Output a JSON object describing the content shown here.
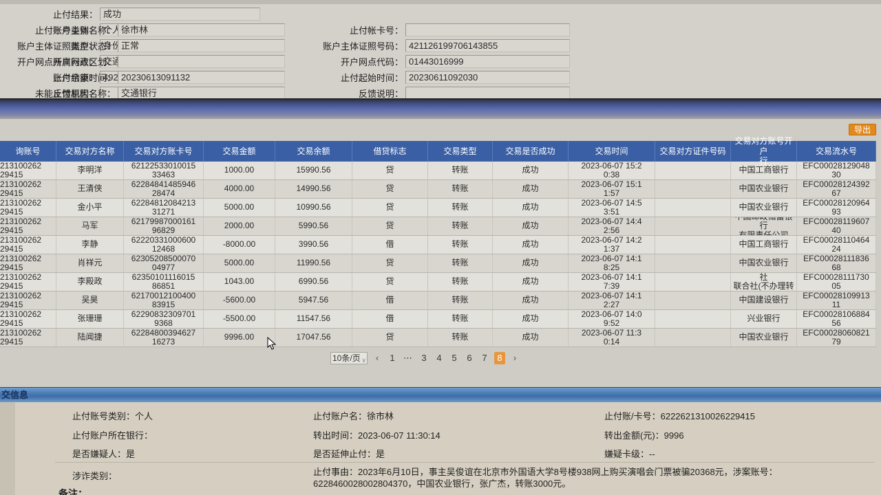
{
  "colors": {
    "accent_orange": "#e2891c",
    "header_blue": "#3a5fa5",
    "active_page_orange": "#e8963c",
    "band_blue": "#5d6baf"
  },
  "form": {
    "rows": [
      {
        "l1": "止付结果：",
        "v1": "成功",
        "l2": null,
        "v2": null,
        "l3": null,
        "v3": null
      },
      {
        "l1": "止付账号类别：",
        "v1": "个人",
        "l2": "止付帐卡号：",
        "v2": "",
        "l3": "账户主体名称：",
        "v3": "徐市林"
      },
      {
        "l1": "账户主体证照类型：",
        "v1": "身份证",
        "l2": "账户主体证照号码：",
        "v2": "421126199706143855",
        "l3": "账户状态：",
        "v3": "正常"
      },
      {
        "l1": "开户网点：",
        "v1": "交通银行深圳八卦岭支行",
        "l2": "开户网点代码：",
        "v2": "01443016999",
        "l3": "开户网点所属行政区划：",
        "v3": ""
      },
      {
        "l1": "账户余额：",
        "v1": "4920.56",
        "l2": "止付起始时间：",
        "v2": "20230611092030",
        "l3": "止付结束时间：",
        "v3": "20230613091132"
      },
      {
        "l1": "未能止付原因：",
        "v1": "",
        "l2": "反馈说明：",
        "v2": "",
        "l3": "反馈机构名称：",
        "v3": "交通银行"
      }
    ]
  },
  "toolbar": {
    "export_label": "导出"
  },
  "table": {
    "columns": [
      "询账号",
      "交易对方名称",
      "交易对方账卡号",
      "交易金额",
      "交易余额",
      "借贷标志",
      "交易类型",
      "交易是否成功",
      "交易时间",
      "交易对方证件号码",
      "交易对方账号开户\n行",
      "交易流水号"
    ],
    "rows": [
      [
        "213100262\n29415",
        "李明洋",
        "62122533010015\n33463",
        "1000.00",
        "15990.56",
        "贷",
        "转账",
        "成功",
        "2023-06-07 15:2\n0:38",
        "",
        "中国工商银行",
        "EFC00028129048\n30"
      ],
      [
        "213100262\n29415",
        "王清侠",
        "62284841485946\n28474",
        "4000.00",
        "14990.56",
        "贷",
        "转账",
        "成功",
        "2023-06-07 15:1\n1:57",
        "",
        "中国农业银行",
        "EFC00028124392\n67"
      ],
      [
        "213100262\n29415",
        "金小平",
        "62284812084213\n31271",
        "5000.00",
        "10990.56",
        "贷",
        "转账",
        "成功",
        "2023-06-07 14:5\n3:51",
        "",
        "中国农业银行",
        "EFC00028120964\n93"
      ],
      [
        "213100262\n29415",
        "马军",
        "62179987000161\n96829",
        "2000.00",
        "5990.56",
        "贷",
        "转账",
        "成功",
        "2023-06-07 14:4\n2:56",
        "",
        "中国邮政储蓄银行\n有限责任公司",
        "EFC00028119607\n40"
      ],
      [
        "213100262\n29415",
        "李静",
        "62220331000600\n12468",
        "-8000.00",
        "3990.56",
        "借",
        "转账",
        "成功",
        "2023-06-07 14:2\n1:37",
        "",
        "中国工商银行",
        "EFC00028110464\n24"
      ],
      [
        "213100262\n29415",
        "肖祥元",
        "62305208500070\n04977",
        "5000.00",
        "11990.56",
        "贷",
        "转账",
        "成功",
        "2023-06-07 14:1\n8:25",
        "",
        "中国农业银行",
        "EFC00028111836\n68"
      ],
      [
        "213100262\n29415",
        "李殿政",
        "62350101116015\n86851",
        "1043.00",
        "6990.56",
        "贷",
        "转账",
        "成功",
        "2023-06-07 14:1\n7:39",
        "",
        "河北省农村信用社\n联合社(不办理转\n汇）",
        "EFC00028111730\n05"
      ],
      [
        "213100262\n29415",
        "吴昊",
        "62170012100400\n83915",
        "-5600.00",
        "5947.56",
        "借",
        "转账",
        "成功",
        "2023-06-07 14:1\n2:27",
        "",
        "中国建设银行",
        "EFC00028109913\n11"
      ],
      [
        "213100262\n29415",
        "张珊珊",
        "62290832309701\n9368",
        "-5500.00",
        "11547.56",
        "借",
        "转账",
        "成功",
        "2023-06-07 14:0\n9:52",
        "",
        "兴业银行",
        "EFC00028106884\n56"
      ],
      [
        "213100262\n29415",
        "陆闻捷",
        "62284800394627\n16273",
        "9996.00",
        "17047.56",
        "贷",
        "转账",
        "成功",
        "2023-06-07 11:3\n0:14",
        "",
        "中国农业银行",
        "EFC00028060821\n79"
      ]
    ]
  },
  "pagination": {
    "page_size_label": "10条/页",
    "prev": "‹",
    "next": "›",
    "pages": [
      "1",
      "⋯",
      "3",
      "4",
      "5",
      "6",
      "7",
      "8"
    ],
    "active": "8"
  },
  "bottom": {
    "bar_title": "交信息",
    "info_rows": [
      [
        "止付账号类别：个人",
        "止付账户名：徐市林",
        "止付账/卡号：6222621310026229415"
      ],
      [
        "止付账户所在银行：",
        "转出时间：2023-06-07 11:30:14",
        "转出金额(元)：9996"
      ],
      [
        "是否嫌疑人：是",
        "是否延伸止付：是",
        "嫌疑卡级：--"
      ]
    ],
    "case_type_label": "涉诈类别：",
    "reason_text": "止付事由：2023年6月10日，事主吴俊谊在北京市外国语大学8号楼938网上购买演唱会门票被骗20368元，涉案账号：6228460028002804370，中国农业银行，张广杰，转账3000元。",
    "note_fragment": "备注："
  }
}
